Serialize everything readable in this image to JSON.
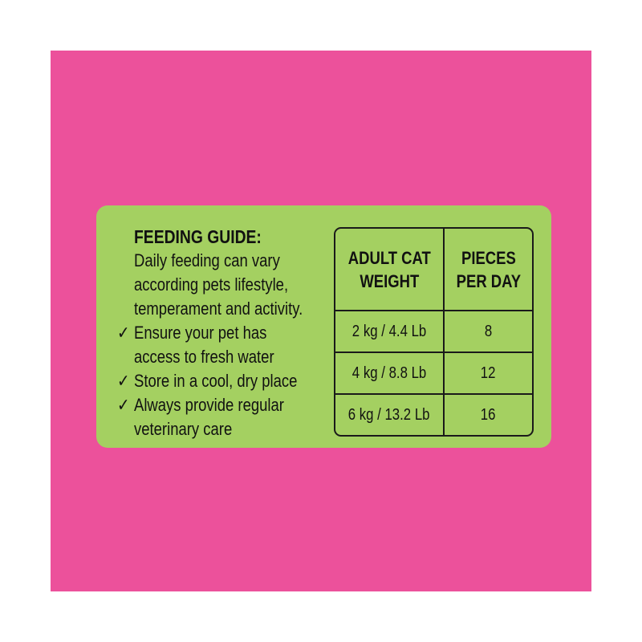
{
  "colors": {
    "background": "#EC519B",
    "panel": "#A4D061",
    "text": "#111111"
  },
  "guide": {
    "title": "FEEDING GUIDE:",
    "intro": [
      "Daily feeding can vary",
      "according pets lifestyle,",
      "temperament and activity."
    ],
    "tips": [
      {
        "icon": "check-icon",
        "glyph": "✓",
        "lines": [
          "Ensure your pet has",
          "access to fresh water"
        ]
      },
      {
        "icon": "check-icon",
        "glyph": "✓",
        "lines": [
          "Store in a cool, dry place"
        ]
      },
      {
        "icon": "check-icon",
        "glyph": "✓",
        "lines": [
          "Always provide regular",
          "veterinary care"
        ]
      }
    ]
  },
  "table": {
    "headers": [
      [
        "ADULT CAT",
        "WEIGHT"
      ],
      [
        "PIECES",
        "PER DAY"
      ]
    ],
    "rows": [
      {
        "weight": "2 kg / 4.4 Lb",
        "pieces": "8"
      },
      {
        "weight": "4 kg / 8.8 Lb",
        "pieces": "12"
      },
      {
        "weight": "6 kg / 13.2 Lb",
        "pieces": "16"
      }
    ]
  }
}
